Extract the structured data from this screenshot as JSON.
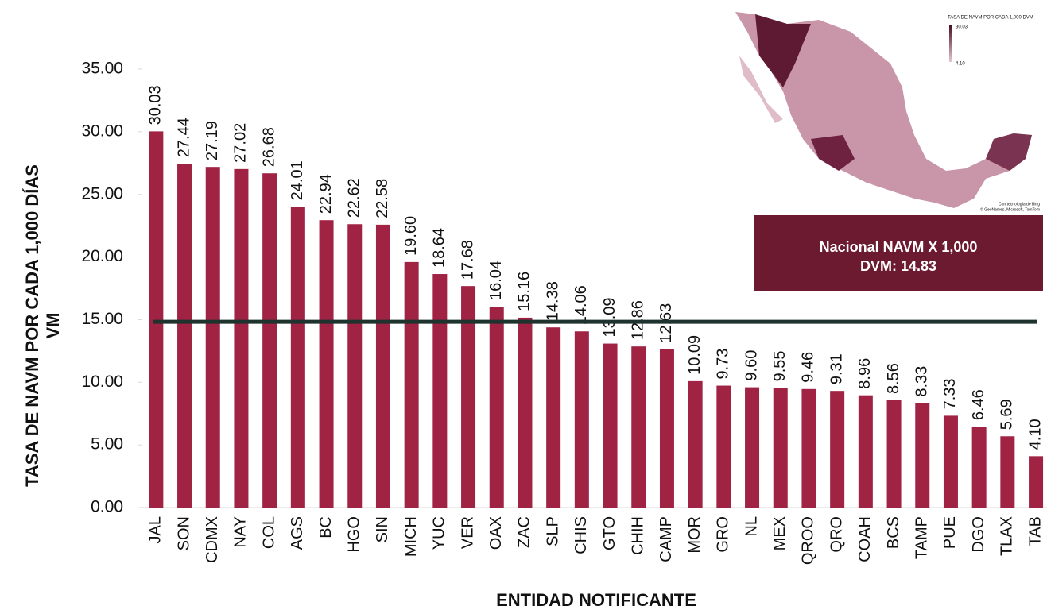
{
  "chart_data": {
    "type": "bar",
    "categories": [
      "JAL",
      "SON",
      "CDMX",
      "NAY",
      "COL",
      "AGS",
      "BC",
      "HGO",
      "SIN",
      "MICH",
      "YUC",
      "VER",
      "OAX",
      "ZAC",
      "SLP",
      "CHIS",
      "GTO",
      "CHIH",
      "CAMP",
      "MOR",
      "GRO",
      "NL",
      "MEX",
      "QROO",
      "QRO",
      "COAH",
      "BCS",
      "TAMP",
      "PUE",
      "DGO",
      "TLAX",
      "TAB"
    ],
    "values": [
      30.03,
      27.44,
      27.19,
      27.02,
      26.68,
      24.01,
      22.94,
      22.62,
      22.58,
      19.6,
      18.64,
      17.68,
      16.04,
      15.16,
      14.38,
      14.06,
      13.09,
      12.86,
      12.63,
      10.09,
      9.73,
      9.6,
      9.55,
      9.46,
      9.31,
      8.96,
      8.56,
      8.33,
      7.33,
      6.46,
      5.69,
      4.1
    ],
    "value_labels": [
      "30.03",
      "27.44",
      "27.19",
      "27.02",
      "26.68",
      "24.01",
      "22.94",
      "22.62",
      "22.58",
      "19.60",
      "18.64",
      "17.68",
      "16.04",
      "15.16",
      "14.38",
      "14.06",
      "13.09",
      "12.86",
      "12.63",
      "10.09",
      "9.73",
      "9.60",
      "9.55",
      "9.46",
      "9.31",
      "8.96",
      "8.56",
      "8.33",
      "7.33",
      "6.46",
      "5.69",
      "4.10"
    ],
    "color": "#a02344",
    "ylim": [
      0,
      35
    ],
    "yticks": [
      {
        "value": 0,
        "label": "0.00"
      },
      {
        "value": 5,
        "label": "5.00"
      },
      {
        "value": 10,
        "label": "10.00"
      },
      {
        "value": 15,
        "label": "15.00"
      },
      {
        "value": 20,
        "label": "20.00"
      },
      {
        "value": 25,
        "label": "25.00"
      },
      {
        "value": 30,
        "label": "30.00"
      },
      {
        "value": 35,
        "label": "35.00"
      }
    ],
    "y_label": [
      "TASA DE NAVM POR CADA 1,000 DÍAS",
      "VM"
    ],
    "x_label": "ENTIDAD NOTIFICANTE",
    "reference_line": {
      "value": 14.83,
      "color": "#1e332e",
      "label": [
        "Nacional NAVM X 1,000",
        "DVM: 14.83"
      ]
    },
    "map": {
      "legend_title": "TASA DE NAVM POR CADA 1,000 DVM",
      "legend_max": "30.03",
      "legend_min": "4.10",
      "credit": [
        "Con tecnología de Bing",
        "© GeoNames, Microsoft, TomTom"
      ]
    }
  }
}
